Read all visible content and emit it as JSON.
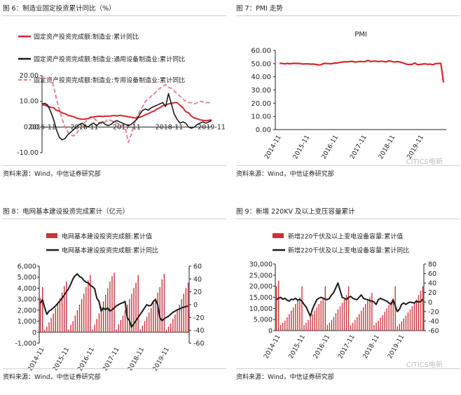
{
  "colors": {
    "red": "#d7252b",
    "pink": "#e58891",
    "black": "#1a1a1a",
    "bar": "#c9323a",
    "axis": "#222222",
    "text": "#222222"
  },
  "watermark": "CITICS电新",
  "charts": [
    {
      "title": "图 6：制造业固定投资累计同比（%）",
      "source": "资料来源：Wind，中信证券研究部",
      "chart_data": {
        "type": "line",
        "x_labels": [
          "2015-11",
          "2016-11",
          "2017-11",
          "2018-11",
          "2019-11"
        ],
        "ylim": [
          -10,
          20
        ],
        "yticks": [
          "-10.00",
          "0.00",
          "10.00",
          "20.00"
        ],
        "series": [
          {
            "name": "固定资产投资完成额:制造业:累计同比",
            "values": [
              8.7,
              8.5,
              8,
              7.7,
              7.5,
              6.5,
              6.2,
              5.5,
              5.2,
              4.6,
              4.3,
              4,
              3.5,
              3.2,
              3,
              3.1,
              3.3,
              3.7,
              4,
              4.1,
              4.2,
              4.1,
              4.2,
              4.2,
              4.3,
              4.5,
              4.3,
              4.5,
              4.4,
              4.2,
              4,
              3.8,
              3.6,
              3.5,
              3.8,
              4.2,
              4.8,
              5.2,
              5.8,
              6.2,
              7,
              7.5,
              8.3,
              8.5,
              9,
              9.2,
              9.5,
              9.5,
              8.5,
              7.5,
              6,
              5.5,
              4.2,
              3.5,
              3.2,
              2.8,
              2.6,
              2.5,
              2.6,
              2.8
            ]
          },
          {
            "name": "固定资产投资完成额:制造业:通用设备制造业:累计同比",
            "values": [
              9,
              9.2,
              8.5,
              6,
              3,
              -1,
              -4,
              -5,
              -4.5,
              -3,
              -2,
              -1,
              0,
              1,
              1.5,
              0.5,
              0,
              1,
              1.5,
              0.5,
              1.5,
              2,
              1,
              0.5,
              1,
              2,
              2.5,
              2,
              1.5,
              1,
              0.5,
              1,
              2,
              3,
              5,
              6.5,
              7,
              6.5,
              7.5,
              8,
              8.5,
              9,
              9.5,
              8,
              13,
              9,
              5,
              3,
              1.5,
              2,
              1.5,
              0,
              -0.5,
              0,
              1,
              1.5,
              2,
              1.5,
              2,
              2.5
            ]
          },
          {
            "name": "固定资产投资完成额:制造业:专用设备制造业:累计同比",
            "values": [
              19.5,
              19,
              18.5,
              18.5,
              16,
              11,
              7,
              3,
              0,
              -2,
              -3,
              -3.5,
              -2.5,
              -1,
              0.5,
              2,
              3,
              4,
              3.5,
              2.5,
              1.5,
              1.5,
              2,
              3,
              2.5,
              2,
              1.5,
              1,
              0.5,
              -0.5,
              -6,
              -3,
              1,
              4,
              6,
              8,
              10,
              11,
              12,
              13,
              14,
              15,
              16,
              16.5,
              15.5,
              15,
              14,
              13,
              12,
              11,
              10,
              9.5,
              9.5,
              9,
              9.5,
              10,
              9.8,
              9.5,
              9.5,
              9.5
            ]
          }
        ]
      }
    },
    {
      "title": "图 7：PMI 走势",
      "source": "资料来源：Wind，中信证券研究部",
      "chart_data": {
        "type": "line",
        "title": "PMI",
        "x_labels": [
          "2014-11",
          "2015-11",
          "2016-11",
          "2017-11",
          "2018-11",
          "2019-11"
        ],
        "ylim": [
          0,
          60
        ],
        "yticks": [
          "0.00",
          "10.00",
          "20.00",
          "30.00",
          "40.00",
          "50.00",
          "60.00"
        ],
        "series": [
          {
            "name": "PMI",
            "values": [
              50.3,
              50.1,
              49.8,
              50.2,
              49.9,
              50.1,
              50.2,
              50.2,
              50.0,
              49.7,
              49.8,
              49.8,
              49.6,
              49.7,
              49.4,
              49.0,
              49.2,
              50.2,
              50.1,
              50.0,
              49.9,
              50.4,
              50.4,
              50.8,
              51.2,
              51.4,
              51.3,
              51.6,
              51.7,
              51.2,
              51.4,
              51.7,
              51.4,
              51.6,
              52.4,
              51.6,
              51.8,
              51.9,
              51.5,
              51.9,
              51.6,
              51.3,
              52.2,
              51.7,
              51.2,
              51.5,
              51.3,
              50.8,
              50.2,
              49.5,
              49.4,
              49.5,
              50.5,
              49.2,
              49.4,
              49.7,
              49.8,
              49.5,
              49.6,
              49.2,
              50.0,
              50.1,
              50.2,
              35.7
            ]
          }
        ]
      }
    },
    {
      "title": "图 8：电网基本建设投资完成累计（亿元）",
      "source": "资料来源：Wind，中信证券研究部",
      "chart_data": {
        "type": "bar+line",
        "x_labels": [
          "2014-11",
          "2015-11",
          "2016-11",
          "2017-11",
          "2018-11",
          "2019-11"
        ],
        "ylim_left": [
          -1000,
          6000
        ],
        "yticks_left": [
          "-1,000",
          "0",
          "1,000",
          "2,000",
          "3,000",
          "4,000",
          "5,000",
          "6,000"
        ],
        "ylim_right": [
          -60,
          60
        ],
        "yticks_right": [
          "-60",
          "-40",
          "-20",
          "0",
          "20",
          "40",
          "60"
        ],
        "series": [
          {
            "name": "电网基本建设投资完成额:累计值",
            "axis": "left",
            "values": [
              3100,
              4100,
              200,
              500,
              900,
              1300,
              1700,
              2200,
              2600,
              3100,
              3600,
              4200,
              4600,
              250,
              650,
              1000,
              1500,
              2000,
              2500,
              3000,
              3500,
              4100,
              4700,
              5200,
              250,
              700,
              1200,
              1700,
              2300,
              2800,
              3400,
              4000,
              4600,
              5100,
              5400,
              250,
              700,
              1100,
              1500,
              2000,
              2500,
              3000,
              3500,
              4000,
              4500,
              5200,
              250,
              600,
              1000,
              1400,
              1800,
              2200,
              2700,
              3100,
              3600,
              4100,
              4800,
              5300,
              200,
              500,
              800,
              1200,
              1600,
              2000,
              2500,
              3000,
              3500,
              4000,
              4500
            ]
          },
          {
            "name": "电网基本建设投资完成额:累计同比",
            "axis": "right",
            "values": [
              2,
              8,
              -5,
              -15,
              -10,
              -8,
              -5,
              -2,
              2,
              6,
              10,
              15,
              20,
              25,
              32,
              40,
              45,
              48,
              44,
              42,
              38,
              35,
              34,
              30,
              28,
              25,
              10,
              5,
              -10,
              -5,
              -8,
              -5,
              -10,
              -8,
              -5,
              -2,
              0,
              2,
              3,
              5,
              -20,
              -25,
              -35,
              -30,
              -25,
              -20,
              -15,
              -10,
              -5,
              0,
              -2,
              -1,
              5,
              8,
              0,
              -20,
              -25,
              -22,
              -20,
              -18,
              -15,
              -12,
              -10,
              -8,
              -7,
              -5,
              -4,
              -3,
              -2
            ]
          }
        ]
      }
    },
    {
      "title": "图 9：新增 220KV 及以上变压容量累计",
      "source": "资料来源：Wind，中信证券研究部",
      "chart_data": {
        "type": "bar+line",
        "x_labels": [
          "2014-11",
          "2015-11",
          "2016-11",
          "2017-11",
          "2018-11",
          "2019-11"
        ],
        "ylim_left": [
          0,
          30000
        ],
        "yticks_left": [
          "0",
          "5,000",
          "10,000",
          "15,000",
          "20,000",
          "25,000",
          "30,000"
        ],
        "ylim_right": [
          -60,
          80
        ],
        "yticks_right": [
          "-60",
          "-40",
          "-20",
          "0",
          "20",
          "40",
          "60",
          "80"
        ],
        "series": [
          {
            "name": "新增220千伏及以上变电设备容量:累计值",
            "axis": "left",
            "values": [
              20000,
              22500,
              2500,
              3500,
              4500,
              6000,
              7500,
              9000,
              10500,
              12000,
              13500,
              15000,
              20000,
              2500,
              3500,
              4800,
              6000,
              7500,
              9000,
              10500,
              12000,
              13500,
              15000,
              20000,
              2500,
              3500,
              4800,
              6200,
              7800,
              9500,
              11000,
              12500,
              14000,
              16000,
              20000,
              2500,
              3500,
              4800,
              6000,
              7500,
              9000,
              10500,
              12000,
              13500,
              15000,
              17000,
              2500,
              3500,
              4500,
              5800,
              7000,
              8500,
              10000,
              11500,
              13000,
              14500,
              20000,
              2000,
              3000,
              4200,
              5500,
              6800,
              8200,
              9500,
              11000,
              12500,
              14000,
              16000,
              18000,
              20000
            ]
          },
          {
            "name": "新增220千伏及以上变电设备容量:累计同比",
            "axis": "right",
            "values": [
              5,
              8,
              10,
              6,
              8,
              4,
              2,
              6,
              5,
              8,
              4,
              6,
              2,
              -5,
              -10,
              -20,
              -30,
              -15,
              -5,
              5,
              8,
              10,
              8,
              6,
              5,
              8,
              15,
              20,
              30,
              40,
              25,
              10,
              8,
              5,
              10,
              12,
              8,
              6,
              5,
              10,
              15,
              8,
              6,
              5,
              3,
              2,
              0,
              -5,
              5,
              8,
              6,
              4,
              2,
              -2,
              -5,
              5,
              -8,
              -20,
              -15,
              -5,
              -2,
              -5,
              -2,
              0,
              -1,
              -2,
              2,
              0,
              1,
              6
            ]
          }
        ]
      }
    }
  ]
}
